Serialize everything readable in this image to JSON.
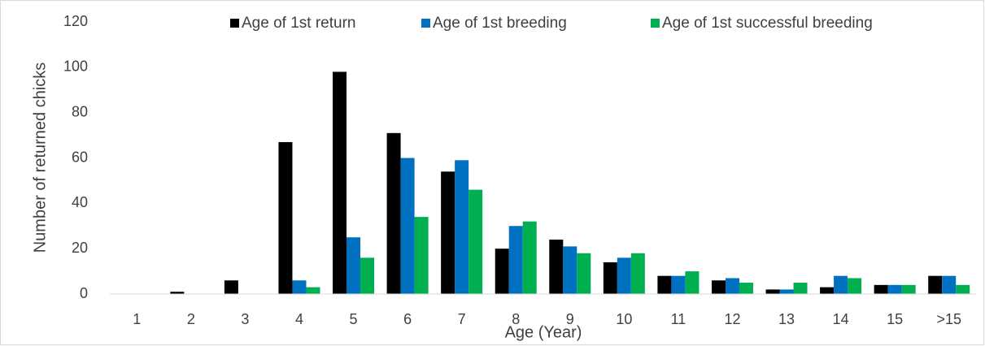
{
  "chart_data": {
    "type": "bar",
    "y_label": "Number of returned chicks",
    "x_label": "Age (Year)",
    "categories": [
      "1",
      "2",
      "3",
      "4",
      "5",
      "6",
      "7",
      "8",
      "9",
      "10",
      "11",
      "12",
      "13",
      "14",
      "15",
      ">15"
    ],
    "series": [
      {
        "name": "Age of 1st return",
        "color": "#000000",
        "values": [
          0,
          1,
          6,
          67,
          98,
          71,
          54,
          20,
          24,
          14,
          8,
          6,
          2,
          3,
          4,
          8
        ]
      },
      {
        "name": "Age of 1st breeding",
        "color": "#0070c0",
        "values": [
          0,
          0,
          0,
          6,
          25,
          60,
          59,
          30,
          21,
          16,
          8,
          7,
          2,
          8,
          4,
          8
        ]
      },
      {
        "name": "Age of 1st successful breeding",
        "color": "#00b050",
        "values": [
          0,
          0,
          0,
          3,
          16,
          34,
          46,
          32,
          18,
          18,
          10,
          5,
          5,
          7,
          4,
          4
        ]
      }
    ],
    "ylim": [
      0,
      120
    ],
    "yticks": [
      0,
      20,
      40,
      60,
      80,
      100,
      120
    ],
    "grid": false,
    "legend": "top"
  }
}
